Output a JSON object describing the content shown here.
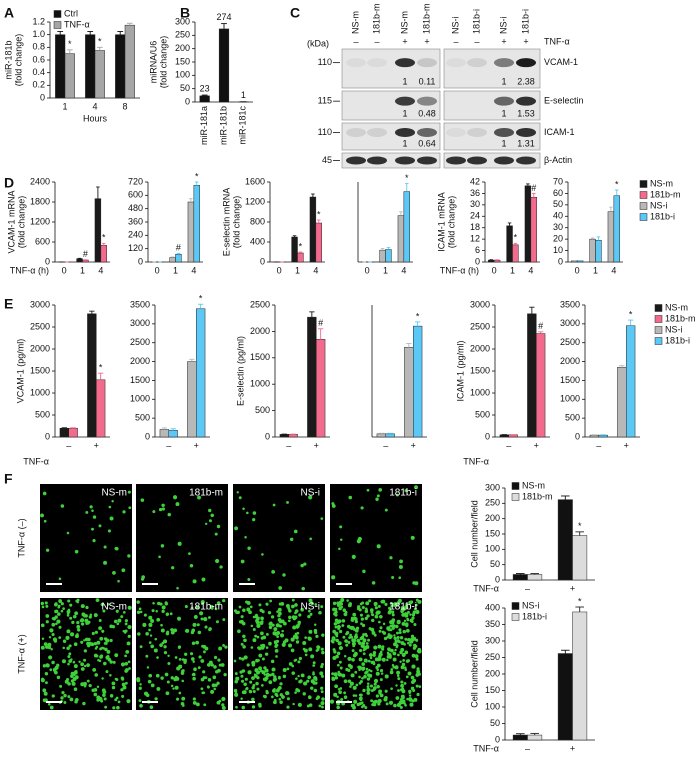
{
  "panel_labels": [
    "A",
    "B",
    "C",
    "D",
    "E",
    "F"
  ],
  "chart_data": [
    {
      "type": "bar",
      "ylabel": [
        "miR-181b",
        "(fold change)"
      ],
      "xlabel": "Hours",
      "categories": [
        "1",
        "4",
        "8"
      ],
      "ylim": [
        0,
        1.2
      ],
      "yticks": [
        0,
        0.2,
        0.4,
        0.6,
        0.8,
        {
          "value": 1,
          "label": "1.0"
        },
        1.2
      ],
      "legend": [
        {
          "name": "Ctrl",
          "color": "#111111"
        },
        {
          "name": "TNF-α",
          "color": "#a6a6a6"
        }
      ],
      "series": [
        {
          "color": "#111111",
          "values": [
            1,
            1,
            1
          ],
          "errors": [
            0.05,
            0.05,
            0.05
          ]
        },
        {
          "color": "#a6a6a6",
          "values": [
            0.7,
            0.75,
            1.15
          ],
          "errors": [
            0.06,
            0.05,
            0.03
          ],
          "flags": [
            "*",
            "*",
            null
          ]
        }
      ]
    },
    {
      "type": "bar",
      "ylabel": [
        "miRNA/U6",
        "(fold change)"
      ],
      "categories": [
        "miR-181a",
        "miR-181b",
        "miR-181c"
      ],
      "ylim": [
        0,
        300
      ],
      "yticks": [
        0,
        50,
        100,
        150,
        200,
        250,
        300
      ],
      "data_labels": true,
      "series": [
        {
          "color": "#111111",
          "values": [
            23,
            274,
            1
          ],
          "errors": [
            3,
            20,
            0
          ]
        }
      ]
    },
    {
      "type": "bar",
      "ylabel": [
        "VCAM-1 mRNA",
        "(fold change)"
      ],
      "xlabel": "TNF-α (h)",
      "categories": [
        "0",
        "1",
        "4"
      ],
      "ylim": [
        0,
        2400
      ],
      "yticks": [
        0,
        600,
        1200,
        1800,
        2400
      ],
      "series": [
        {
          "color": "#1a1a1a",
          "values": [
            1,
            100,
            1900
          ],
          "errors": [
            0,
            10,
            350
          ]
        },
        {
          "color": "#f36b8c",
          "values": [
            1,
            60,
            500
          ],
          "errors": [
            0,
            8,
            60
          ],
          "flags": [
            null,
            "#",
            "*"
          ]
        }
      ]
    },
    {
      "type": "bar",
      "categories": [
        "0",
        "1",
        "4"
      ],
      "ylim": [
        0,
        720
      ],
      "yticks": [
        0,
        120,
        240,
        360,
        480,
        600,
        720
      ],
      "series": [
        {
          "color": "#b8b8b8",
          "values": [
            1,
            40,
            540
          ],
          "errors": [
            0,
            5,
            30
          ]
        },
        {
          "color": "#5bc8f5",
          "values": [
            1,
            70,
            690
          ],
          "errors": [
            0,
            8,
            30
          ],
          "flags": [
            null,
            "#",
            "*"
          ]
        }
      ]
    },
    {
      "type": "bar",
      "ylabel": [
        "E-selectin mRNA",
        "(fold change)"
      ],
      "categories": [
        "0",
        "1",
        "4"
      ],
      "ylim": [
        0,
        1600
      ],
      "yticks": [
        0,
        400,
        800,
        1200,
        1600
      ],
      "series": [
        {
          "color": "#1a1a1a",
          "values": [
            1,
            500,
            1300
          ],
          "errors": [
            0,
            25,
            60
          ]
        },
        {
          "color": "#f36b8c",
          "values": [
            1,
            180,
            780
          ],
          "errors": [
            0,
            20,
            60
          ],
          "flags": [
            null,
            "*",
            "*"
          ]
        }
      ]
    },
    {
      "type": "bar",
      "categories": [
        "0",
        "1",
        "4"
      ],
      "ylim": [
        0,
        2500
      ],
      "series": [
        {
          "color": "#b8b8b8",
          "values": [
            1,
            370,
            1450
          ],
          "errors": [
            0,
            50,
            120
          ]
        },
        {
          "color": "#5bc8f5",
          "values": [
            1,
            390,
            2200
          ],
          "errors": [
            0,
            60,
            250
          ],
          "flags": [
            null,
            null,
            "*"
          ]
        }
      ]
    },
    {
      "type": "bar",
      "ylabel": [
        "ICAM-1 mRNA",
        "(fold change)"
      ],
      "xlabel": "TNF-α (h)",
      "categories": [
        "0",
        "1",
        "4"
      ],
      "ylim": [
        0,
        42
      ],
      "yticks": [
        0,
        6,
        12,
        18,
        24,
        30,
        36,
        42
      ],
      "series": [
        {
          "color": "#1a1a1a",
          "values": [
            1,
            19,
            40
          ],
          "errors": [
            0.2,
            1.5,
            1
          ]
        },
        {
          "color": "#f36b8c",
          "values": [
            1,
            9,
            34
          ],
          "errors": [
            0.2,
            0.8,
            2
          ],
          "flags": [
            null,
            "*",
            "#"
          ]
        }
      ]
    },
    {
      "type": "bar",
      "categories": [
        "0",
        "1",
        "4"
      ],
      "ylim": [
        0,
        70
      ],
      "yticks": [
        0,
        10,
        20,
        30,
        40,
        50,
        60,
        70
      ],
      "legend": [
        {
          "name": "NS-m",
          "color": "#1a1a1a"
        },
        {
          "name": "181b-m",
          "color": "#f36b8c"
        },
        {
          "name": "NS-i",
          "color": "#b8b8b8"
        },
        {
          "name": "181b-i",
          "color": "#5bc8f5"
        }
      ],
      "series": [
        {
          "color": "#b8b8b8",
          "values": [
            1,
            20,
            44
          ],
          "errors": [
            0.3,
            1,
            4
          ]
        },
        {
          "color": "#5bc8f5",
          "values": [
            1,
            19,
            58
          ],
          "errors": [
            0.3,
            3,
            5
          ],
          "flags": [
            null,
            null,
            "*"
          ]
        }
      ]
    },
    {
      "type": "bar",
      "ylabel": [
        "VCAM-1 (pg/ml)"
      ],
      "xlabel": "TNF-α",
      "categories": [
        "–",
        "+"
      ],
      "ylim": [
        0,
        3000
      ],
      "yticks": [
        0,
        500,
        1000,
        1500,
        2000,
        2500,
        3000
      ],
      "series": [
        {
          "color": "#1a1a1a",
          "values": [
            200,
            2800
          ],
          "errors": [
            10,
            60
          ]
        },
        {
          "color": "#f36b8c",
          "values": [
            200,
            1300
          ],
          "errors": [
            10,
            150
          ],
          "flags": [
            null,
            "*"
          ]
        }
      ]
    },
    {
      "type": "bar",
      "categories": [
        "–",
        "+"
      ],
      "ylim": [
        0,
        3500
      ],
      "yticks": [
        0,
        500,
        1000,
        1500,
        2000,
        2500,
        3000,
        3500
      ],
      "series": [
        {
          "color": "#b8b8b8",
          "values": [
            200,
            2000
          ],
          "errors": [
            40,
            60
          ]
        },
        {
          "color": "#5bc8f5",
          "values": [
            180,
            3400
          ],
          "errors": [
            40,
            120
          ],
          "flags": [
            null,
            "*"
          ]
        }
      ]
    },
    {
      "type": "bar",
      "ylabel": [
        "E-selectin (pg/ml)"
      ],
      "categories": [
        "–",
        "+"
      ],
      "ylim": [
        0,
        2500
      ],
      "yticks": [
        0,
        500,
        1000,
        1500,
        2000,
        2500
      ],
      "series": [
        {
          "color": "#1a1a1a",
          "values": [
            50,
            2270
          ],
          "errors": [
            5,
            100
          ]
        },
        {
          "color": "#f36b8c",
          "values": [
            50,
            1850
          ],
          "errors": [
            5,
            200
          ],
          "flags": [
            null,
            "#"
          ]
        }
      ]
    },
    {
      "type": "bar",
      "categories": [
        "–",
        "+"
      ],
      "ylim": [
        0,
        2500
      ],
      "series": [
        {
          "color": "#b8b8b8",
          "values": [
            60,
            1700
          ],
          "errors": [
            10,
            70
          ]
        },
        {
          "color": "#5bc8f5",
          "values": [
            60,
            2100
          ],
          "errors": [
            10,
            80
          ],
          "flags": [
            null,
            "*"
          ]
        }
      ]
    },
    {
      "type": "bar",
      "ylabel": [
        "ICAM-1 (pg/ml)"
      ],
      "xlabel": "TNF-α",
      "categories": [
        "–",
        "+"
      ],
      "ylim": [
        0,
        3000
      ],
      "yticks": [
        0,
        500,
        1000,
        1500,
        2000,
        2500,
        3000
      ],
      "series": [
        {
          "color": "#1a1a1a",
          "values": [
            50,
            2800
          ],
          "errors": [
            5,
            150
          ]
        },
        {
          "color": "#f36b8c",
          "values": [
            50,
            2350
          ],
          "errors": [
            5,
            40
          ],
          "flags": [
            null,
            "#"
          ]
        }
      ]
    },
    {
      "type": "bar",
      "categories": [
        "–",
        "+"
      ],
      "ylim": [
        0,
        3500
      ],
      "yticks": [
        0,
        500,
        1000,
        1500,
        2000,
        2500,
        3000,
        3500
      ],
      "legend": [
        {
          "name": "NS-m",
          "color": "#1a1a1a"
        },
        {
          "name": "181b-m",
          "color": "#f36b8c"
        },
        {
          "name": "NS-i",
          "color": "#b8b8b8"
        },
        {
          "name": "181b-i",
          "color": "#5bc8f5"
        }
      ],
      "series": [
        {
          "color": "#b8b8b8",
          "values": [
            50,
            1850
          ],
          "errors": [
            10,
            40
          ]
        },
        {
          "color": "#5bc8f5",
          "values": [
            50,
            2950
          ],
          "errors": [
            10,
            150
          ],
          "flags": [
            null,
            "*"
          ]
        }
      ]
    },
    {
      "type": "bar",
      "ylabel": [
        "Cell number/field"
      ],
      "xlabel": "TNF-α",
      "categories": [
        "–",
        "+"
      ],
      "ylim": [
        0,
        300
      ],
      "yticks": [
        0,
        50,
        100,
        150,
        200,
        250,
        300
      ],
      "legend": [
        {
          "name": "NS-m",
          "color": "#111111"
        },
        {
          "name": "181b-m",
          "color": "#dcdcdc"
        }
      ],
      "series": [
        {
          "color": "#111111",
          "values": [
            18,
            262
          ],
          "errors": [
            3,
            12
          ]
        },
        {
          "color": "#dcdcdc",
          "values": [
            18,
            145
          ],
          "errors": [
            3,
            12
          ],
          "flags": [
            null,
            "*"
          ]
        }
      ]
    },
    {
      "type": "bar",
      "ylabel": [
        "Cell number/field"
      ],
      "xlabel": "TNF-α",
      "categories": [
        "–",
        "+"
      ],
      "ylim": [
        0,
        400
      ],
      "yticks": [
        0,
        50,
        100,
        150,
        200,
        250,
        300,
        350,
        400
      ],
      "legend": [
        {
          "name": "NS-i",
          "color": "#111111"
        },
        {
          "name": "181b-i",
          "color": "#dcdcdc"
        }
      ],
      "series": [
        {
          "color": "#111111",
          "values": [
            15,
            262
          ],
          "errors": [
            4,
            10
          ]
        },
        {
          "color": "#dcdcdc",
          "values": [
            15,
            388
          ],
          "errors": [
            5,
            15
          ],
          "flags": [
            null,
            "*"
          ]
        }
      ]
    }
  ],
  "blot": {
    "unit": "(kDa)",
    "lanes": [
      "NS-m",
      "181b-m",
      "NS-m",
      "181b-m",
      "NS-i",
      "181b-i",
      "NS-i",
      "181b-i"
    ],
    "treatment_label": "TNF-α",
    "treatment": [
      "–",
      "–",
      "+",
      "+",
      "–",
      "–",
      "+",
      "+"
    ],
    "rows": [
      {
        "protein": "VCAM-1",
        "marker": 110,
        "quant": [
          1,
          0.11,
          1,
          2.38
        ]
      },
      {
        "protein": "E-selectin",
        "marker": 115,
        "quant": [
          1,
          0.48,
          1,
          1.53
        ]
      },
      {
        "protein": "ICAM-1",
        "marker": 110,
        "quant": [
          1,
          0.64,
          1,
          1.31
        ]
      },
      {
        "protein": "β-Actin",
        "marker": 45
      }
    ]
  },
  "micrographs": {
    "row_labels": [
      "TNF-α (–)",
      "TNF-α (+)"
    ],
    "tiles": [
      [
        "NS-m",
        "181b-m",
        "NS-i",
        "181b-i"
      ],
      [
        "NS-m",
        "181b-m",
        "NS-i",
        "181b-i"
      ]
    ]
  }
}
